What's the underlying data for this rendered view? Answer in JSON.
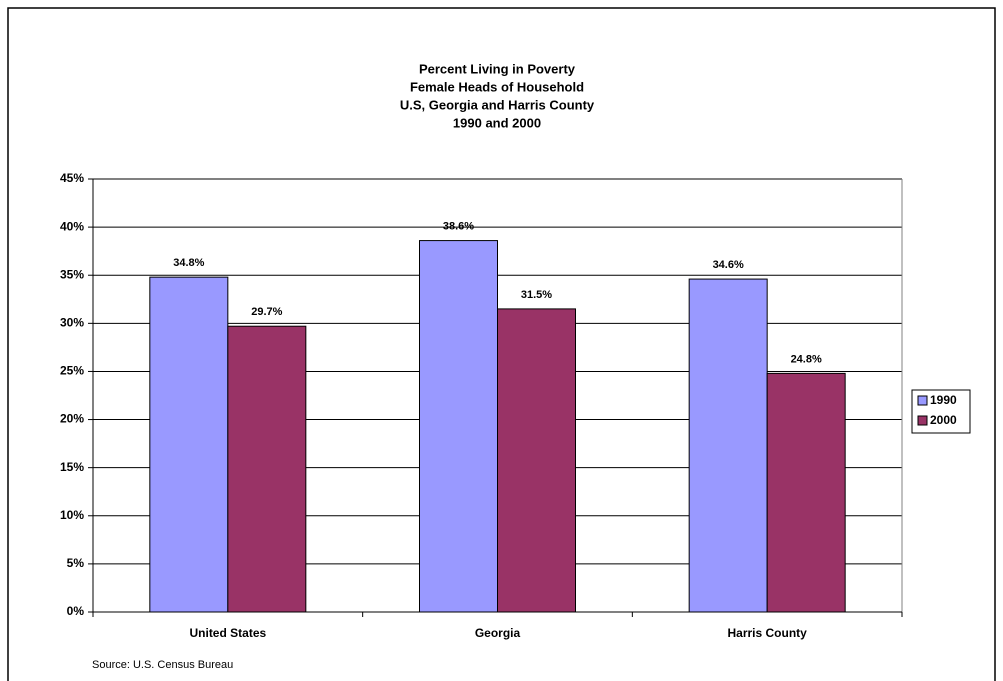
{
  "chart_data": {
    "type": "bar",
    "title": [
      "Percent Living in Poverty",
      "Female Heads of Household",
      "U.S, Georgia and Harris County",
      "1990 and 2000"
    ],
    "categories": [
      "United States",
      "Georgia",
      "Harris County"
    ],
    "series": [
      {
        "name": "1990",
        "color": "#9999ff",
        "values": [
          34.8,
          38.6,
          34.6
        ],
        "value_labels": [
          "34.8%",
          "38.6%",
          "34.6%"
        ]
      },
      {
        "name": "2000",
        "color": "#993366",
        "values": [
          29.7,
          31.5,
          24.8
        ],
        "value_labels": [
          "29.7%",
          "31.5%",
          "24.8%"
        ]
      }
    ],
    "ylim": [
      0,
      45
    ],
    "yticks": [
      {
        "value": 0,
        "label": "0%"
      },
      {
        "value": 5,
        "label": "5%"
      },
      {
        "value": 10,
        "label": "10%"
      },
      {
        "value": 15,
        "label": "15%"
      },
      {
        "value": 20,
        "label": "20%"
      },
      {
        "value": 25,
        "label": "25%"
      },
      {
        "value": 30,
        "label": "30%"
      },
      {
        "value": 35,
        "label": "35%"
      },
      {
        "value": 40,
        "label": "40%"
      },
      {
        "value": 45,
        "label": "45%"
      }
    ],
    "grid": true,
    "legend": "right",
    "annotation": "Source: U.S. Census Bureau"
  }
}
